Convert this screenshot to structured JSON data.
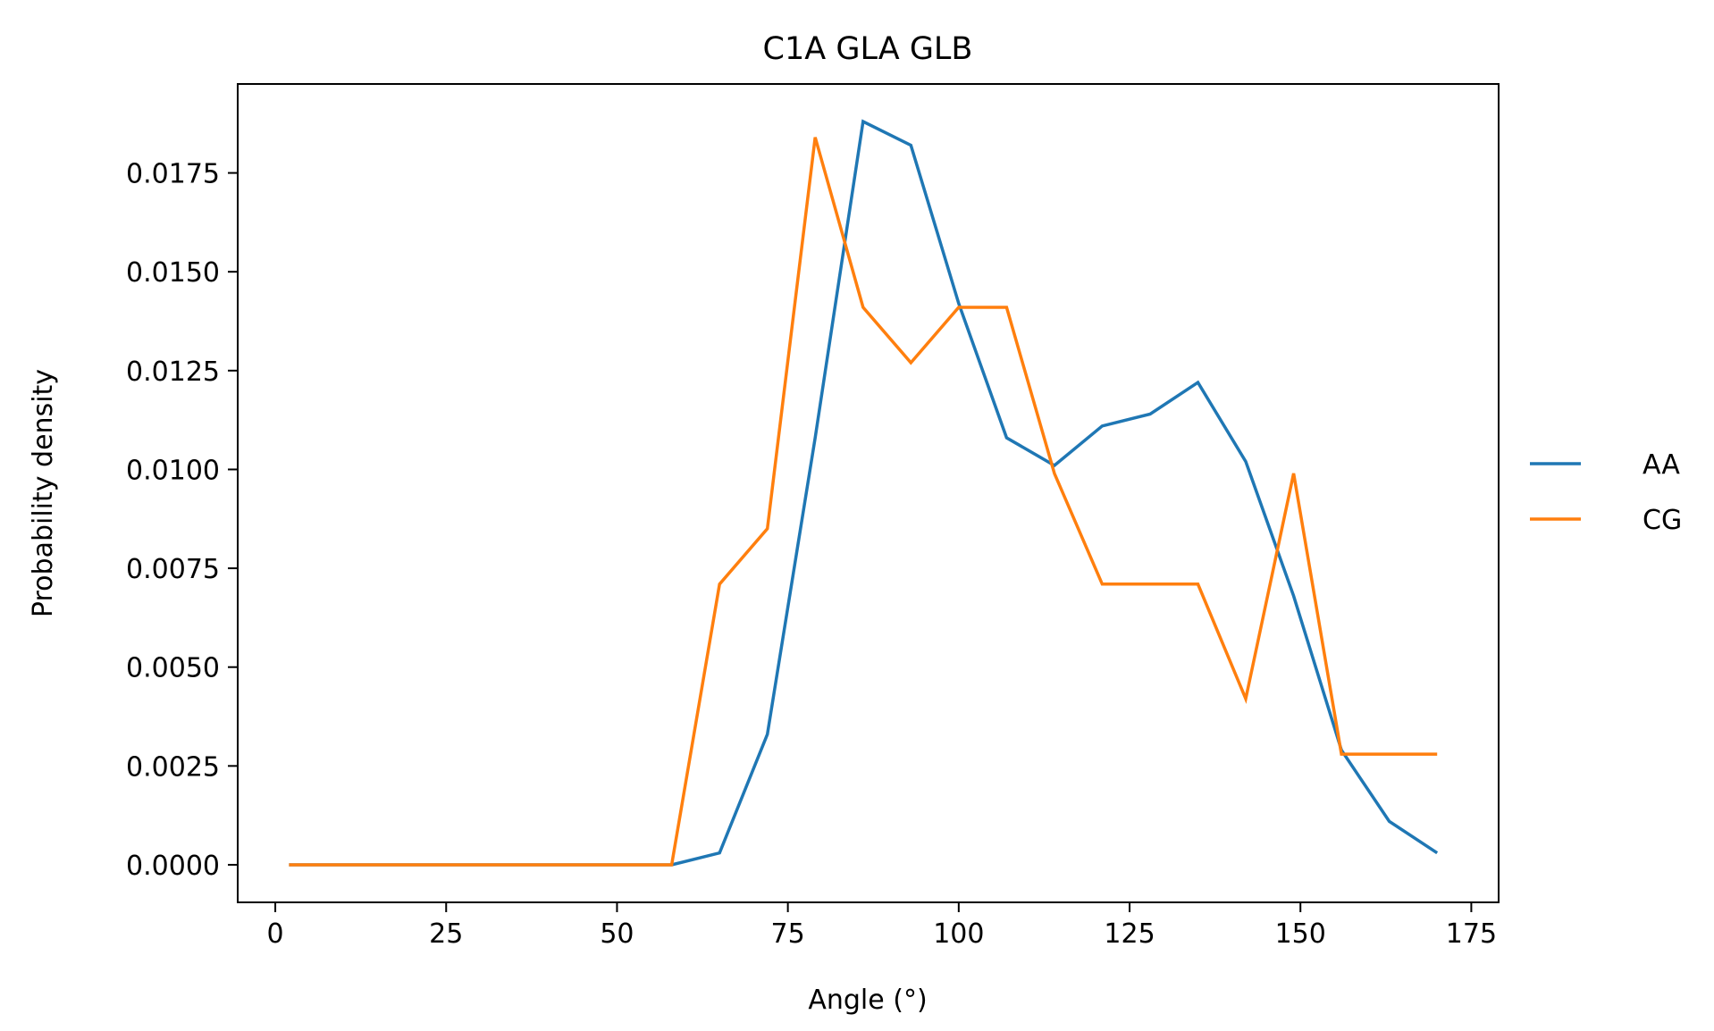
{
  "chart_data": {
    "type": "line",
    "title": "C1A GLA GLB",
    "xlabel": "Angle (°)",
    "ylabel": "Probability density",
    "xlim": [
      -5.5,
      179
    ],
    "ylim": [
      -0.00095,
      0.01975
    ],
    "xticks": [
      0,
      25,
      50,
      75,
      100,
      125,
      150,
      175
    ],
    "xtick_labels": [
      "0",
      "25",
      "50",
      "75",
      "100",
      "125",
      "150",
      "175"
    ],
    "yticks": [
      0,
      0.0025,
      0.005,
      0.0075,
      0.01,
      0.0125,
      0.015,
      0.0175
    ],
    "ytick_labels": [
      "0.0000",
      "0.0025",
      "0.0050",
      "0.0075",
      "0.0100",
      "0.0125",
      "0.0150",
      "0.0175"
    ],
    "grid": false,
    "legend_position": "outside-right",
    "x": [
      2,
      9,
      16,
      23,
      30,
      37,
      44,
      51,
      58,
      65,
      72,
      79,
      86,
      93,
      100,
      107,
      114,
      121,
      128,
      135,
      142,
      149,
      156,
      163,
      170
    ],
    "series": [
      {
        "name": "AA",
        "color": "#1f77b4",
        "values": [
          0,
          0,
          0,
          0,
          0,
          0,
          0,
          0,
          0,
          0.0003,
          0.0033,
          0.0108,
          0.0188,
          0.0182,
          0.0142,
          0.0108,
          0.0101,
          0.0111,
          0.0114,
          0.0122,
          0.0102,
          0.0068,
          0.0029,
          0.0011,
          0.0003
        ]
      },
      {
        "name": "CG",
        "color": "#ff7f0e",
        "values": [
          0,
          0,
          0,
          0,
          0,
          0,
          0,
          0,
          0,
          0.0071,
          0.0085,
          0.0184,
          0.0141,
          0.0127,
          0.0141,
          0.0141,
          0.0099,
          0.0071,
          0.0071,
          0.0071,
          0.0042,
          0.0099,
          0.0028,
          0.0028,
          0.0028
        ]
      }
    ]
  }
}
